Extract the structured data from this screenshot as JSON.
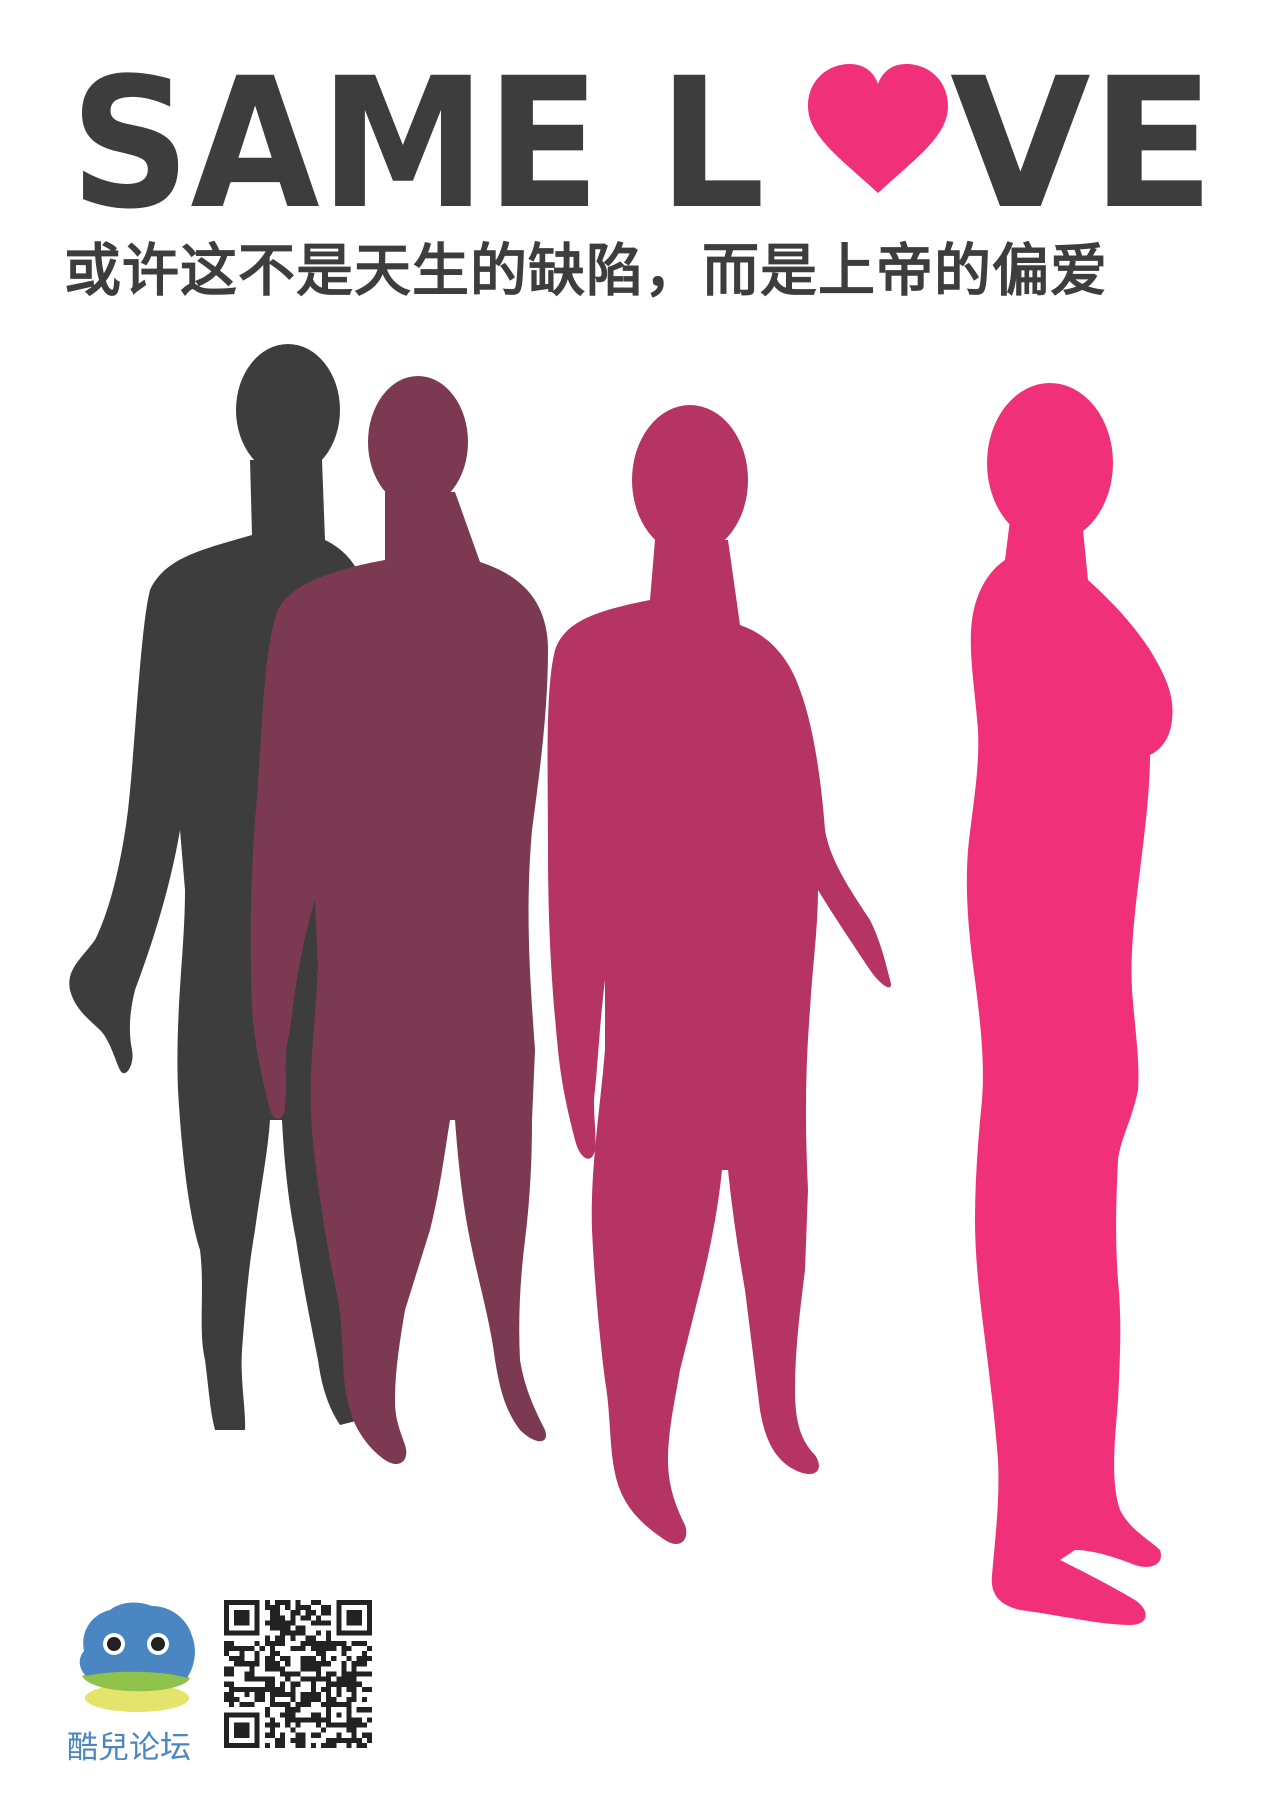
{
  "poster": {
    "headline": {
      "part1": "SAME L",
      "part2": "VE",
      "heart_symbol": "heart-icon"
    },
    "subtitle": "或许这不是天生的缺陷，而是上帝的偏爱",
    "brand_name": "酷兒论坛",
    "qr_icon": "qr-code-icon",
    "logo_icon": "blue-fluffy-creature-logo"
  },
  "colors": {
    "dark_gray": "#3d3d3d",
    "plum": "#7b3a52",
    "magenta_dark": "#b53464",
    "pink": "#f0317a",
    "brand_blue": "#4a86c2",
    "logo_green": "#8fc24a",
    "logo_yellow": "#e4e36c"
  }
}
